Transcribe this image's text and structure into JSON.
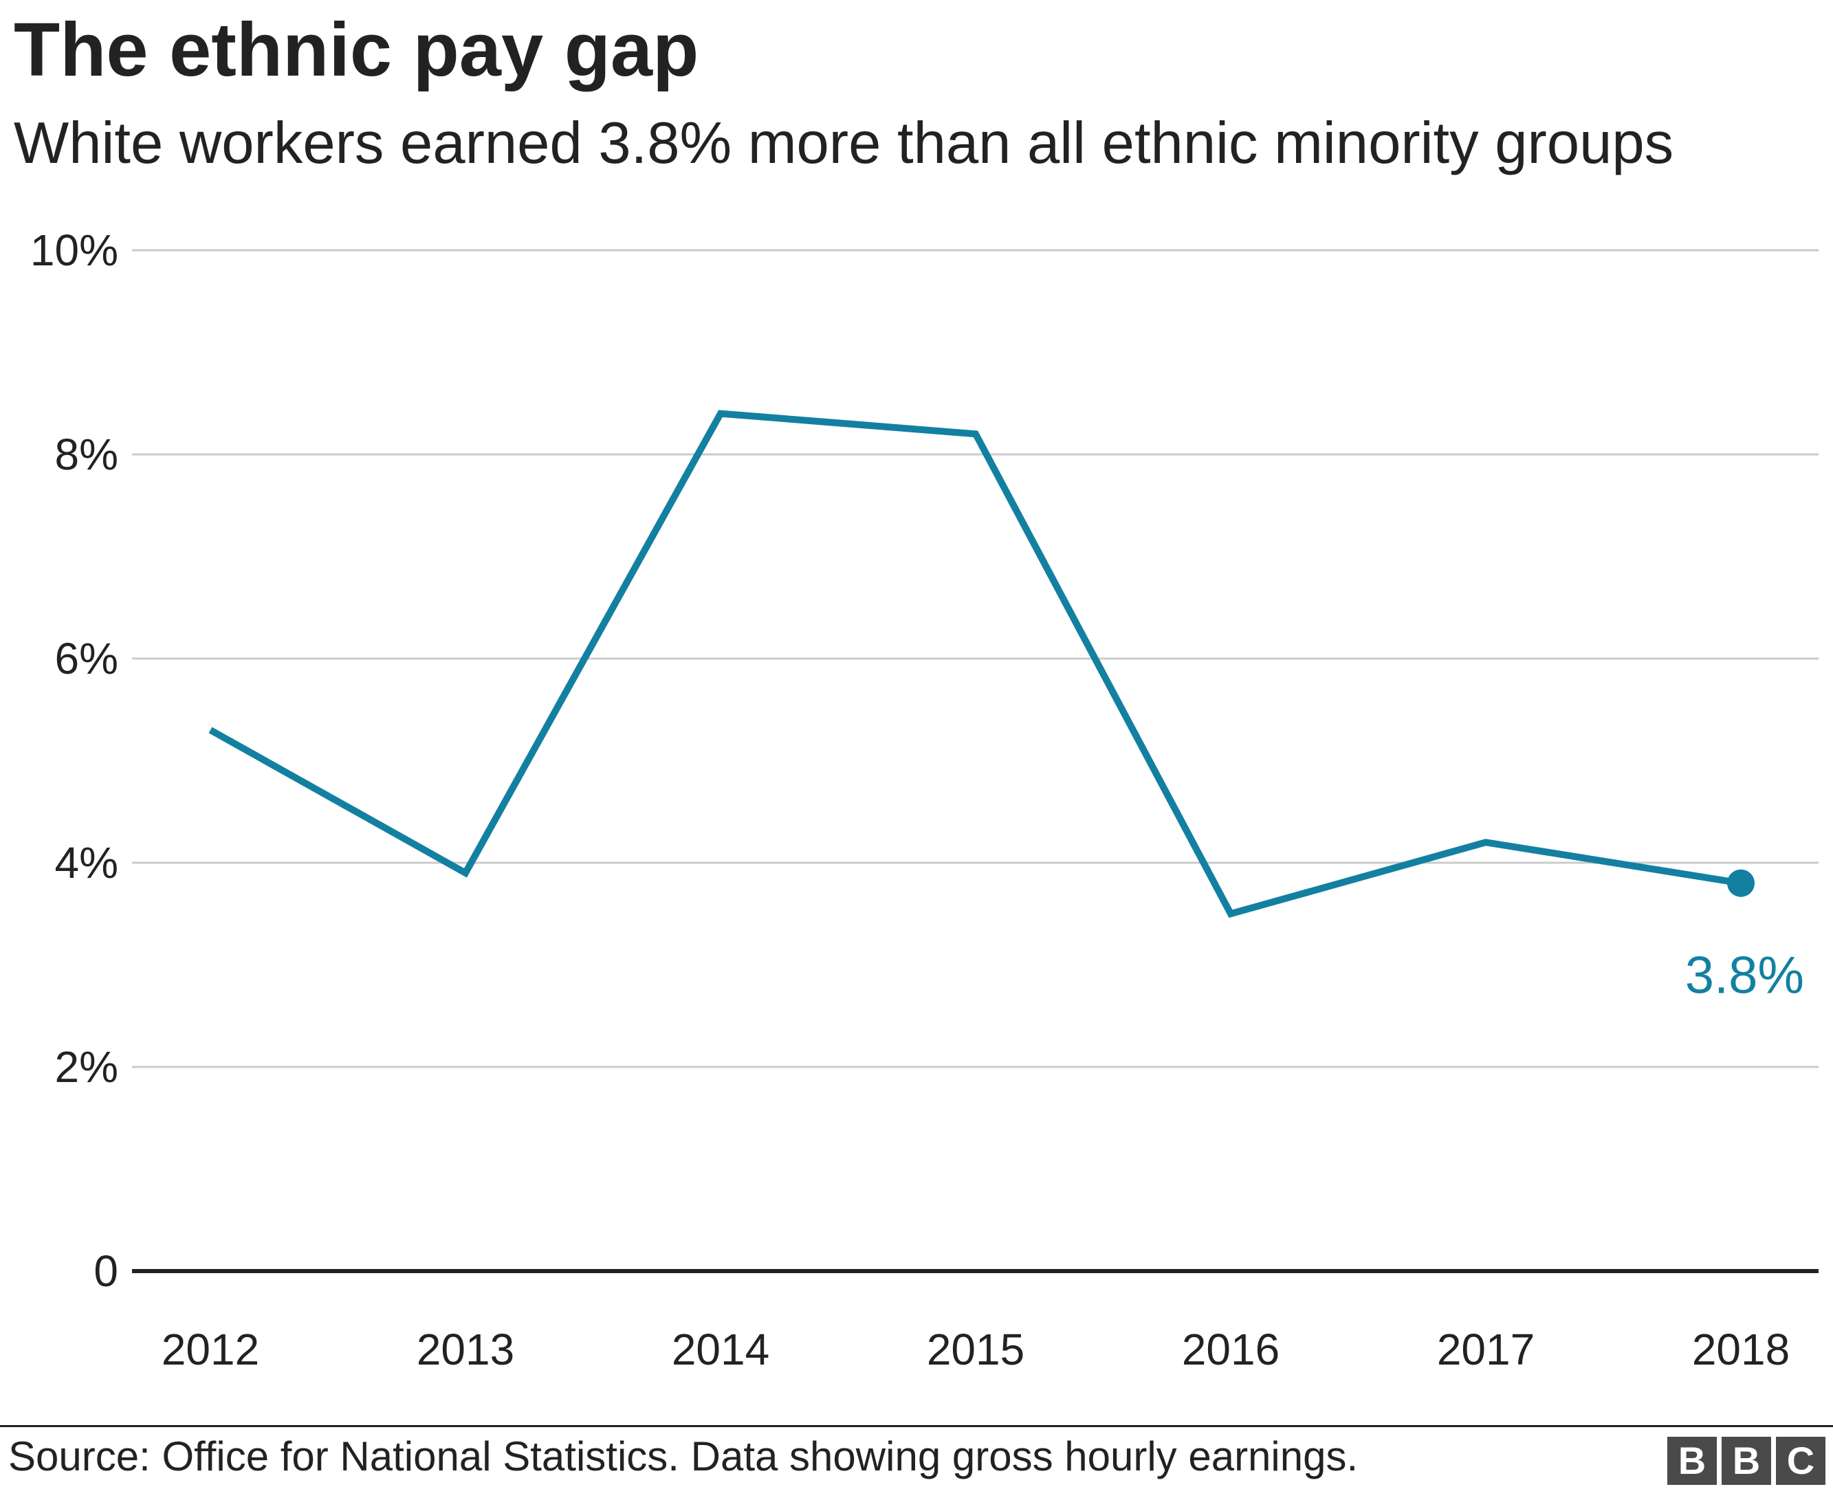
{
  "header": {
    "title": "The ethnic pay gap",
    "subtitle": "White workers earned 3.8% more than all ethnic minority groups"
  },
  "footer": {
    "source": "Source: Office for National Statistics. Data showing gross hourly earnings.",
    "logo_letters": [
      "B",
      "B",
      "C"
    ]
  },
  "colors": {
    "line": "#1380a1",
    "gridline": "#cbcbcb",
    "baseline": "#222222",
    "text": "#222222",
    "logo_box": "#4a4a4a"
  },
  "chart_data": {
    "type": "line",
    "title": "The ethnic pay gap",
    "subtitle": "White workers earned 3.8% more than all ethnic minority groups",
    "xlabel": "",
    "ylabel": "",
    "categories": [
      "2012",
      "2013",
      "2014",
      "2015",
      "2016",
      "2017",
      "2018"
    ],
    "series": [
      {
        "values": [
          5.3,
          3.9,
          8.4,
          8.2,
          3.5,
          4.2,
          3.8
        ]
      }
    ],
    "ylim": [
      0,
      10
    ],
    "yticks": [
      0,
      2,
      4,
      6,
      8,
      10
    ],
    "ytick_labels": [
      "0",
      "2%",
      "4%",
      "6%",
      "8%",
      "10%"
    ],
    "grid": true,
    "legend": "none",
    "annotations": [
      {
        "x": "2018",
        "y": 3.8,
        "text": "3.8%"
      }
    ]
  }
}
